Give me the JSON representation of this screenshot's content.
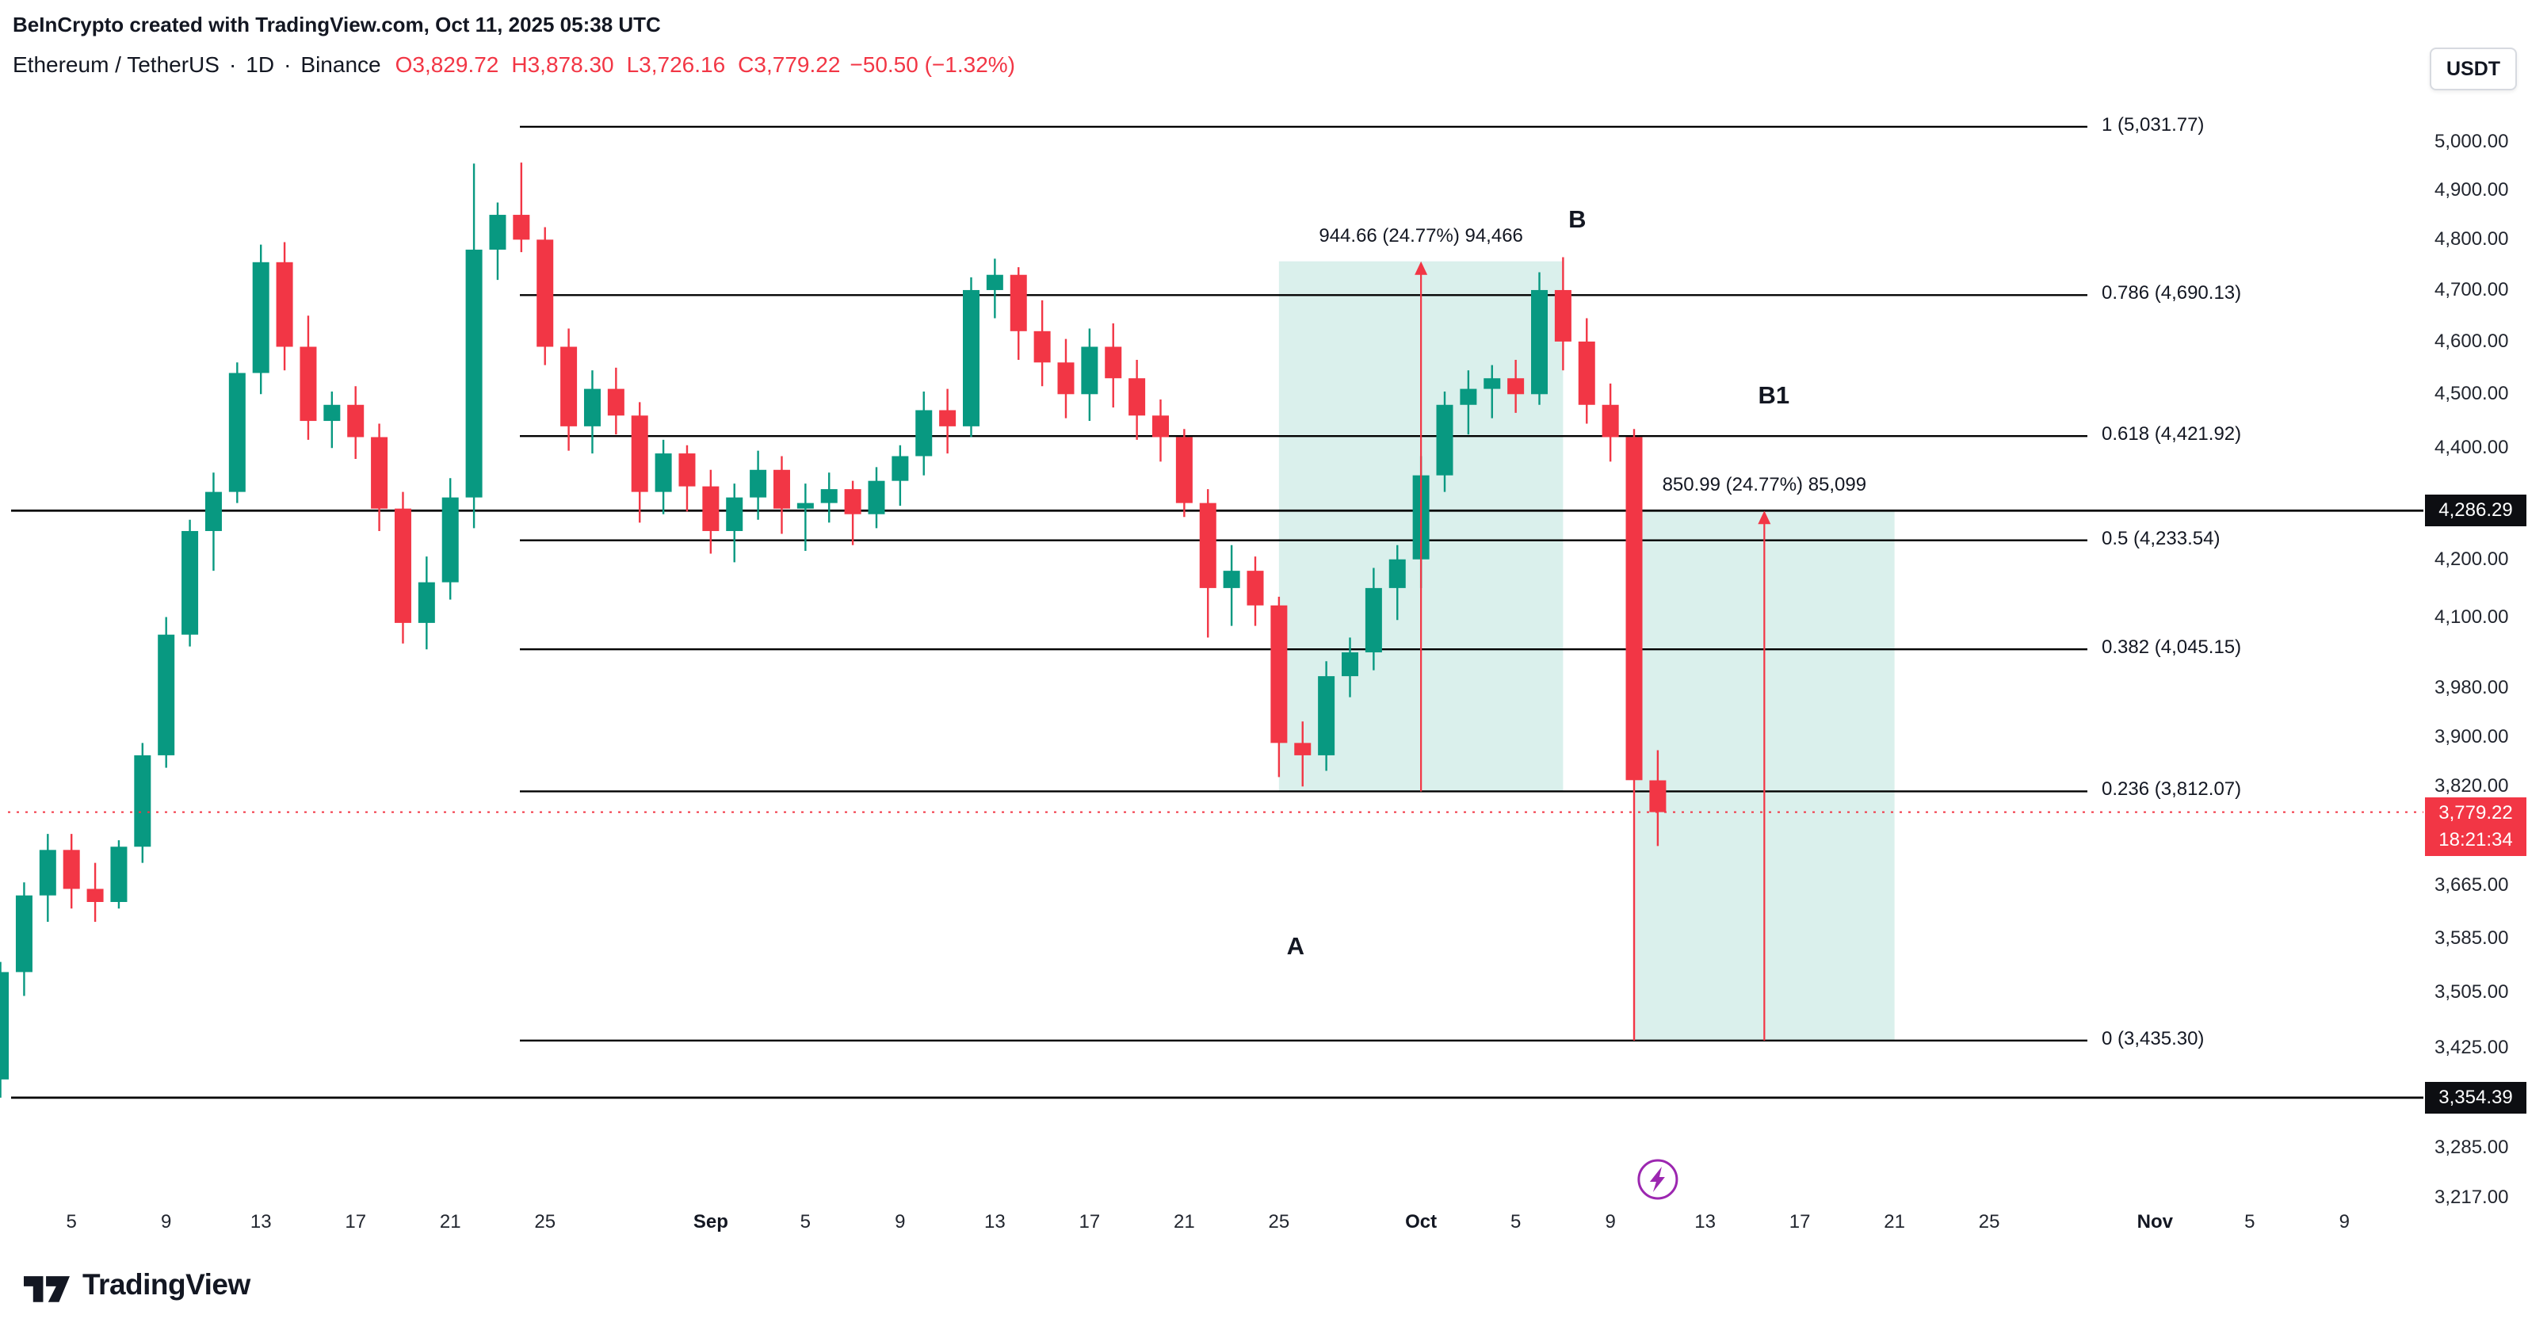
{
  "meta": {
    "attribution": "BeInCrypto created with TradingView.com, Oct 11, 2025 05:38 UTC"
  },
  "header": {
    "symbol": "Ethereum / TetherUS",
    "separator": "·",
    "interval": "1D",
    "exchange": "Binance",
    "ohlc": [
      {
        "key": "O",
        "value": "3,829.72"
      },
      {
        "key": "H",
        "value": "3,878.30"
      },
      {
        "key": "L",
        "value": "3,726.16"
      },
      {
        "key": "C",
        "value": "3,779.22"
      }
    ],
    "change": "−50.50 (−1.32%)",
    "currency_button": "USDT"
  },
  "footer": {
    "logo_text": "TradingView"
  },
  "chart_data": {
    "type": "candlestick",
    "title": "Ethereum / TetherUS · 1D · Binance",
    "scale": "logarithmic",
    "price_axis": {
      "min": 3200,
      "max": 5050,
      "side": "right"
    },
    "colors": {
      "up": "#089981",
      "down": "#F23645",
      "projection_fill": "rgba(8,153,129,0.15)",
      "projection_line": "#F23645",
      "level_line": "#000000",
      "last_price": "#F23645",
      "marker": "#9C27B0"
    },
    "price_axis_labels": [
      "5,000.00",
      "4,900.00",
      "4,800.00",
      "4,700.00",
      "4,600.00",
      "4,500.00",
      "4,400.00",
      "4,200.00",
      "4,100.00",
      "3,980.00",
      "3,900.00",
      "3,820.00",
      "3,665.00",
      "3,585.00",
      "3,505.00",
      "3,425.00",
      "3,285.00",
      "3,217.00"
    ],
    "axis_badges": [
      {
        "text": "4,286.29",
        "price": 4286.29
      },
      {
        "text": "3,354.39",
        "price": 3354.39
      }
    ],
    "last_price_badge": {
      "text": "3,779.22",
      "price": 3779.22,
      "countdown": "18:21:34"
    },
    "time_axis_labels": [
      {
        "text": "5",
        "day": 3
      },
      {
        "text": "9",
        "day": 7
      },
      {
        "text": "13",
        "day": 11
      },
      {
        "text": "17",
        "day": 15
      },
      {
        "text": "21",
        "day": 19
      },
      {
        "text": "25",
        "day": 23
      },
      {
        "text": "Sep",
        "day": 30,
        "bold": true
      },
      {
        "text": "5",
        "day": 34
      },
      {
        "text": "9",
        "day": 38
      },
      {
        "text": "13",
        "day": 42
      },
      {
        "text": "17",
        "day": 46
      },
      {
        "text": "21",
        "day": 50
      },
      {
        "text": "25",
        "day": 54
      },
      {
        "text": "Oct",
        "day": 60,
        "bold": true
      },
      {
        "text": "5",
        "day": 64
      },
      {
        "text": "9",
        "day": 68
      },
      {
        "text": "13",
        "day": 72
      },
      {
        "text": "17",
        "day": 76
      },
      {
        "text": "21",
        "day": 80
      },
      {
        "text": "25",
        "day": 84
      },
      {
        "text": "Nov",
        "day": 91,
        "bold": true
      },
      {
        "text": "5",
        "day": 95
      },
      {
        "text": "9",
        "day": 99
      }
    ],
    "fib_levels": [
      {
        "label": "1 (5,031.77)",
        "price": 5031.77
      },
      {
        "label": "0.786 (4,690.13)",
        "price": 4690.13
      },
      {
        "label": "0.618 (4,421.92)",
        "price": 4421.92
      },
      {
        "label": "0.5 (4,233.54)",
        "price": 4233.54
      },
      {
        "label": "0.382 (4,045.15)",
        "price": 4045.15
      },
      {
        "label": "0.236 (3,812.07)",
        "price": 3812.07
      },
      {
        "label": "0 (3,435.30)",
        "price": 3435.3
      }
    ],
    "horizontal_lines": [
      {
        "price": 4286.29
      },
      {
        "price": 3354.39
      }
    ],
    "projections": [
      {
        "label": "944.66 (24.77%) 94,466",
        "day_start": 54,
        "day_end": 66,
        "price_top": 4756.73,
        "price_bottom": 3812.07
      },
      {
        "label": "850.99 (24.77%) 85,099",
        "day_start": 69,
        "day_end": 80,
        "price_top": 4286.29,
        "price_bottom": 3435.3
      }
    ],
    "point_labels": [
      {
        "text": "B",
        "day": 66.6,
        "price": 4840
      },
      {
        "text": "B1",
        "day": 74.9,
        "price": 4497
      },
      {
        "text": "A",
        "day": 54.7,
        "price": 3573
      }
    ],
    "marker": {
      "name": "lightning",
      "day": 70
    },
    "candles_columns": [
      "date",
      "open",
      "high",
      "low",
      "close"
    ],
    "candles": [
      [
        "2025-08-02",
        3380,
        3550,
        3354.39,
        3535
      ],
      [
        "2025-08-03",
        3535,
        3670,
        3500,
        3650
      ],
      [
        "2025-08-04",
        3650,
        3745,
        3610,
        3720
      ],
      [
        "2025-08-05",
        3720,
        3745,
        3630,
        3660
      ],
      [
        "2025-08-06",
        3660,
        3700,
        3610,
        3640
      ],
      [
        "2025-08-07",
        3640,
        3735,
        3630,
        3725
      ],
      [
        "2025-08-08",
        3725,
        3890,
        3700,
        3870
      ],
      [
        "2025-08-09",
        3870,
        4100,
        3850,
        4070
      ],
      [
        "2025-08-10",
        4070,
        4270,
        4050,
        4250
      ],
      [
        "2025-08-11",
        4250,
        4355,
        4180,
        4320
      ],
      [
        "2025-08-12",
        4320,
        4560,
        4300,
        4540
      ],
      [
        "2025-08-13",
        4540,
        4790,
        4500,
        4755
      ],
      [
        "2025-08-14",
        4755,
        4795,
        4545,
        4590
      ],
      [
        "2025-08-15",
        4590,
        4650,
        4415,
        4450
      ],
      [
        "2025-08-16",
        4450,
        4505,
        4400,
        4480
      ],
      [
        "2025-08-17",
        4480,
        4515,
        4380,
        4420
      ],
      [
        "2025-08-18",
        4420,
        4445,
        4250,
        4290
      ],
      [
        "2025-08-19",
        4290,
        4320,
        4055,
        4090
      ],
      [
        "2025-08-20",
        4090,
        4205,
        4045,
        4160
      ],
      [
        "2025-08-21",
        4160,
        4345,
        4130,
        4310
      ],
      [
        "2025-08-22",
        4310,
        4955,
        4255,
        4780
      ],
      [
        "2025-08-23",
        4780,
        4875,
        4720,
        4850
      ],
      [
        "2025-08-24",
        4850,
        4957,
        4775,
        4800
      ],
      [
        "2025-08-25",
        4800,
        4825,
        4555,
        4590
      ],
      [
        "2025-08-26",
        4590,
        4625,
        4395,
        4440
      ],
      [
        "2025-08-27",
        4440,
        4545,
        4390,
        4510
      ],
      [
        "2025-08-28",
        4510,
        4550,
        4425,
        4460
      ],
      [
        "2025-08-29",
        4460,
        4485,
        4265,
        4320
      ],
      [
        "2025-08-30",
        4320,
        4415,
        4280,
        4390
      ],
      [
        "2025-08-31",
        4390,
        4405,
        4285,
        4330
      ],
      [
        "2025-09-01",
        4330,
        4360,
        4210,
        4250
      ],
      [
        "2025-09-02",
        4250,
        4335,
        4195,
        4310
      ],
      [
        "2025-09-03",
        4310,
        4395,
        4270,
        4360
      ],
      [
        "2025-09-04",
        4360,
        4385,
        4245,
        4290
      ],
      [
        "2025-09-05",
        4290,
        4335,
        4215,
        4300
      ],
      [
        "2025-09-06",
        4300,
        4355,
        4265,
        4325
      ],
      [
        "2025-09-07",
        4325,
        4340,
        4225,
        4280
      ],
      [
        "2025-09-08",
        4280,
        4365,
        4255,
        4340
      ],
      [
        "2025-09-09",
        4340,
        4405,
        4295,
        4385
      ],
      [
        "2025-09-10",
        4385,
        4505,
        4350,
        4470
      ],
      [
        "2025-09-11",
        4470,
        4510,
        4390,
        4440
      ],
      [
        "2025-09-12",
        4440,
        4725,
        4420,
        4700
      ],
      [
        "2025-09-13",
        4700,
        4762,
        4645,
        4730
      ],
      [
        "2025-09-14",
        4730,
        4745,
        4565,
        4620
      ],
      [
        "2025-09-15",
        4620,
        4680,
        4515,
        4560
      ],
      [
        "2025-09-16",
        4560,
        4605,
        4455,
        4500
      ],
      [
        "2025-09-17",
        4500,
        4625,
        4450,
        4590
      ],
      [
        "2025-09-18",
        4590,
        4635,
        4475,
        4530
      ],
      [
        "2025-09-19",
        4530,
        4565,
        4415,
        4460
      ],
      [
        "2025-09-20",
        4460,
        4490,
        4375,
        4420
      ],
      [
        "2025-09-21",
        4420,
        4435,
        4275,
        4300
      ],
      [
        "2025-09-22",
        4300,
        4325,
        4065,
        4150
      ],
      [
        "2025-09-23",
        4150,
        4225,
        4085,
        4180
      ],
      [
        "2025-09-24",
        4180,
        4205,
        4085,
        4120
      ],
      [
        "2025-09-25",
        4120,
        4135,
        3835,
        3890
      ],
      [
        "2025-09-26",
        3890,
        3925,
        3820,
        3870
      ],
      [
        "2025-09-27",
        3870,
        4025,
        3845,
        4000
      ],
      [
        "2025-09-28",
        4000,
        4065,
        3965,
        4040
      ],
      [
        "2025-09-29",
        4040,
        4185,
        4010,
        4150
      ],
      [
        "2025-09-30",
        4150,
        4225,
        4095,
        4200
      ],
      [
        "2025-10-01",
        4200,
        4385,
        4150,
        4350
      ],
      [
        "2025-10-02",
        4350,
        4505,
        4320,
        4480
      ],
      [
        "2025-10-03",
        4480,
        4545,
        4425,
        4510
      ],
      [
        "2025-10-04",
        4510,
        4555,
        4455,
        4530
      ],
      [
        "2025-10-05",
        4530,
        4565,
        4465,
        4500
      ],
      [
        "2025-10-06",
        4500,
        4735,
        4480,
        4700
      ],
      [
        "2025-10-07",
        4700,
        4765,
        4545,
        4600
      ],
      [
        "2025-10-08",
        4600,
        4645,
        4445,
        4480
      ],
      [
        "2025-10-09",
        4480,
        4520,
        4375,
        4420
      ],
      [
        "2025-10-10",
        4420,
        4435,
        3435.3,
        3830
      ],
      [
        "2025-10-11",
        3829.72,
        3878.3,
        3726.16,
        3779.22
      ]
    ]
  }
}
